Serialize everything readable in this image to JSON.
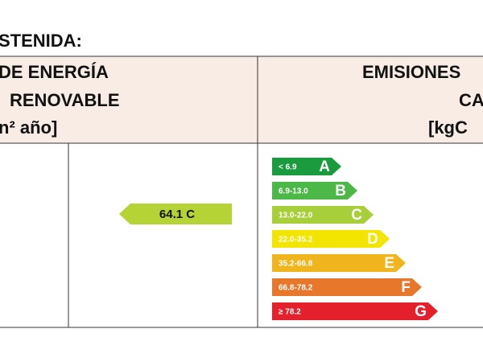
{
  "title": "STENIDA:",
  "left_header": {
    "line1": "DE ENERGÍA",
    "line2": "RENOVABLE",
    "line3": "n² año]"
  },
  "right_header": {
    "line1": "EMISIONES",
    "line2": "CA",
    "line3": "[kgC"
  },
  "rating": {
    "label": "64.1 C",
    "color": "#b5d334"
  },
  "scale": [
    {
      "range": "< 6.9",
      "letter": "A",
      "color": "#1a9b3e"
    },
    {
      "range": "6.9-13.0",
      "letter": "B",
      "color": "#4cb848"
    },
    {
      "range": "13.0-22.0",
      "letter": "C",
      "color": "#a7cf3a"
    },
    {
      "range": "22.0-35.2",
      "letter": "D",
      "color": "#f4e500"
    },
    {
      "range": "35.2-66.8",
      "letter": "E",
      "color": "#f0b41c"
    },
    {
      "range": "66.8-78.2",
      "letter": "F",
      "color": "#e7772b"
    },
    {
      "range": "≥ 78.2",
      "letter": "G",
      "color": "#e3202b"
    }
  ]
}
